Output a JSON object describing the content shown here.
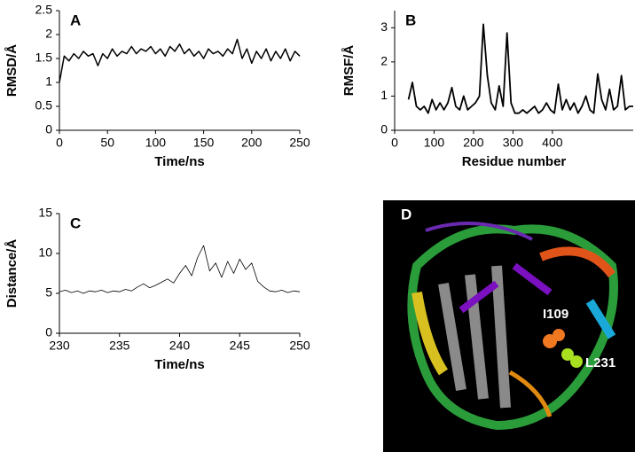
{
  "chart_data": [
    {
      "type": "line",
      "label": "A",
      "x_label": "Time/ns",
      "y_label": "RMSD/Å",
      "color": "#000000",
      "x": [
        0,
        5,
        10,
        15,
        20,
        25,
        30,
        35,
        40,
        45,
        50,
        55,
        60,
        65,
        70,
        75,
        80,
        85,
        90,
        95,
        100,
        105,
        110,
        115,
        120,
        125,
        130,
        135,
        140,
        145,
        150,
        155,
        160,
        165,
        170,
        175,
        180,
        185,
        190,
        195,
        200,
        205,
        210,
        215,
        220,
        225,
        230,
        235,
        240,
        245,
        250
      ],
      "values": [
        1.0,
        1.55,
        1.45,
        1.6,
        1.5,
        1.65,
        1.55,
        1.6,
        1.35,
        1.6,
        1.5,
        1.7,
        1.55,
        1.65,
        1.6,
        1.75,
        1.6,
        1.7,
        1.65,
        1.75,
        1.6,
        1.7,
        1.55,
        1.75,
        1.65,
        1.8,
        1.6,
        1.7,
        1.55,
        1.65,
        1.5,
        1.7,
        1.6,
        1.65,
        1.55,
        1.7,
        1.6,
        1.9,
        1.5,
        1.7,
        1.4,
        1.65,
        1.5,
        1.7,
        1.45,
        1.65,
        1.5,
        1.7,
        1.45,
        1.65,
        1.55
      ],
      "xlim": [
        0,
        250
      ],
      "xticks": [
        0,
        50,
        100,
        150,
        200,
        250
      ],
      "ylim": [
        0,
        2.5
      ],
      "yticks": [
        0,
        0.5,
        1,
        1.5,
        2,
        2.5
      ]
    },
    {
      "type": "line",
      "label": "B",
      "x_label": "Residue number",
      "y_label": "RMSF/Å",
      "color": "#000000",
      "x": [
        35,
        45,
        55,
        65,
        75,
        85,
        95,
        105,
        115,
        125,
        135,
        145,
        155,
        165,
        175,
        185,
        195,
        205,
        215,
        225,
        235,
        245,
        255,
        265,
        275,
        285,
        295,
        305,
        315,
        325,
        335,
        345,
        355,
        365,
        375,
        385,
        395,
        405,
        415,
        425,
        435,
        445,
        455,
        465,
        475,
        485,
        495,
        505,
        515,
        525,
        535,
        545,
        555,
        565,
        575,
        585,
        595,
        605
      ],
      "values": [
        0.9,
        1.4,
        0.7,
        0.6,
        0.7,
        0.5,
        0.9,
        0.6,
        0.8,
        0.6,
        0.8,
        1.25,
        0.7,
        0.6,
        1.0,
        0.6,
        0.7,
        0.8,
        1.0,
        3.1,
        1.6,
        0.8,
        0.6,
        1.3,
        0.7,
        2.85,
        0.8,
        0.5,
        0.5,
        0.6,
        0.5,
        0.6,
        0.7,
        0.5,
        0.6,
        0.8,
        0.6,
        0.5,
        1.35,
        0.6,
        0.9,
        0.6,
        0.8,
        0.5,
        0.7,
        1.0,
        0.6,
        0.5,
        1.65,
        0.9,
        0.6,
        1.2,
        0.6,
        0.7,
        1.6,
        0.6,
        0.7,
        0.7
      ],
      "xlim": [
        0,
        605
      ],
      "xticks": [
        0,
        100,
        200,
        300,
        400
      ],
      "ylim": [
        0,
        3.5
      ],
      "yticks": [
        0,
        1,
        2,
        3
      ]
    },
    {
      "type": "line",
      "label": "C",
      "x_label": "Time/ns",
      "y_label": "Distance/Å",
      "color": "#000000",
      "x": [
        230,
        230.5,
        231,
        231.5,
        232,
        232.5,
        233,
        233.5,
        234,
        234.5,
        235,
        235.5,
        236,
        236.5,
        237,
        237.5,
        238,
        238.5,
        239,
        239.5,
        240,
        240.5,
        241,
        241.5,
        242,
        242.5,
        243,
        243.5,
        244,
        244.5,
        245,
        245.5,
        246,
        246.5,
        247,
        247.5,
        248,
        248.5,
        249,
        249.5,
        250
      ],
      "values": [
        5.2,
        5.4,
        5.1,
        5.3,
        5.0,
        5.3,
        5.2,
        5.4,
        5.1,
        5.3,
        5.2,
        5.5,
        5.3,
        5.8,
        6.2,
        5.7,
        6.0,
        6.4,
        6.8,
        6.3,
        7.5,
        8.5,
        7.2,
        9.5,
        11.0,
        7.8,
        8.8,
        7.0,
        9.0,
        7.5,
        9.3,
        8.0,
        8.8,
        6.5,
        5.8,
        5.3,
        5.2,
        5.4,
        5.1,
        5.3,
        5.2
      ],
      "xlim": [
        230,
        250
      ],
      "xticks": [
        230,
        235,
        240,
        245,
        250
      ],
      "ylim": [
        0,
        15
      ],
      "yticks": [
        0,
        5,
        10,
        15
      ]
    }
  ],
  "image_panel": {
    "label": "D",
    "annotations": [
      "I109",
      "L231"
    ]
  }
}
